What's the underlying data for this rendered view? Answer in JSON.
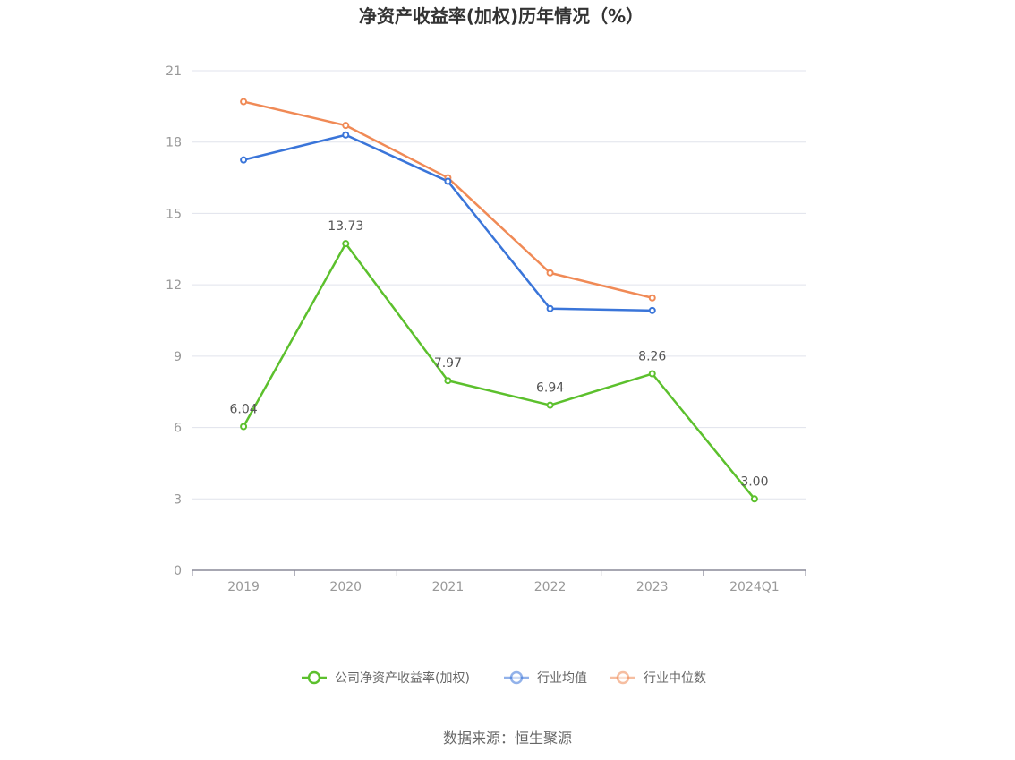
{
  "chart_data": {
    "type": "line",
    "title": "净资产收益率(加权)历年情况（%）",
    "categories": [
      "2019",
      "2020",
      "2021",
      "2022",
      "2023",
      "2024Q1"
    ],
    "ylim": [
      0,
      21
    ],
    "yticks": [
      0,
      3,
      6,
      9,
      12,
      15,
      18,
      21
    ],
    "grid": true,
    "legend_position": "bottom",
    "series": [
      {
        "name": "公司净资产收益率(加权)",
        "color": "#5cc02d",
        "values": [
          6.04,
          13.73,
          7.97,
          6.94,
          8.26,
          3.0
        ],
        "labels": [
          "6.04",
          "13.73",
          "7.97",
          "6.94",
          "8.26",
          "3.00"
        ]
      },
      {
        "name": "行业均值",
        "color": "#3a75d9",
        "values": [
          17.25,
          18.3,
          16.35,
          11.0,
          10.92,
          null
        ]
      },
      {
        "name": "行业中位数",
        "color": "#f08a56",
        "values": [
          19.7,
          18.7,
          16.5,
          12.5,
          11.45,
          null
        ]
      }
    ],
    "source": "数据来源：恒生聚源"
  }
}
